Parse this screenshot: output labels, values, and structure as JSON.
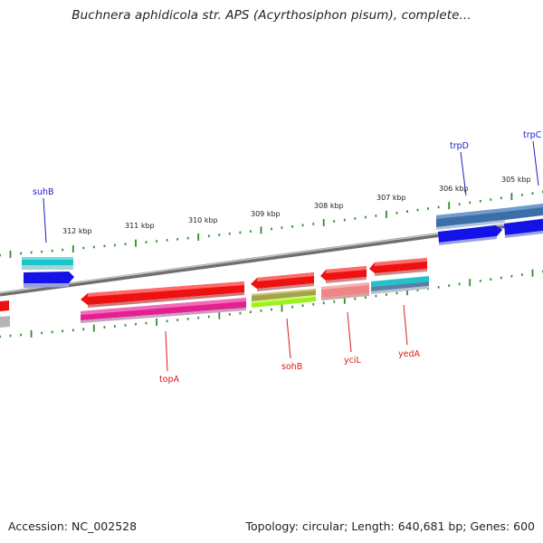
{
  "title": "Buchnera aphidicola str. APS (Acyrthosiphon pisum), complete...",
  "footer": {
    "accession": "Accession: NC_002528",
    "summary": "Topology: circular; Length: 640,681 bp; Genes: 600"
  },
  "scale_labels": [
    "312 kbp",
    "311 kbp",
    "310 kbp",
    "309 kbp",
    "308 kbp",
    "307 kbp",
    "306 kbp",
    "305 kbp"
  ],
  "genes_upper": [
    "suhB",
    "trpD",
    "trpC"
  ],
  "genes_lower": [
    "topA",
    "sohB",
    "yciL",
    "yedA"
  ],
  "colors": {
    "red": "#ee1111",
    "blue": "#1111ee",
    "cyan": "#22c6cc",
    "steel": "#4a7fb5",
    "magenta": "#e8259a",
    "olive": "#a9a84c",
    "lime": "#a6f22a",
    "salmon": "#ee8a8a",
    "tick": "#2e8b2e",
    "backbone": "#7a7a7a"
  }
}
